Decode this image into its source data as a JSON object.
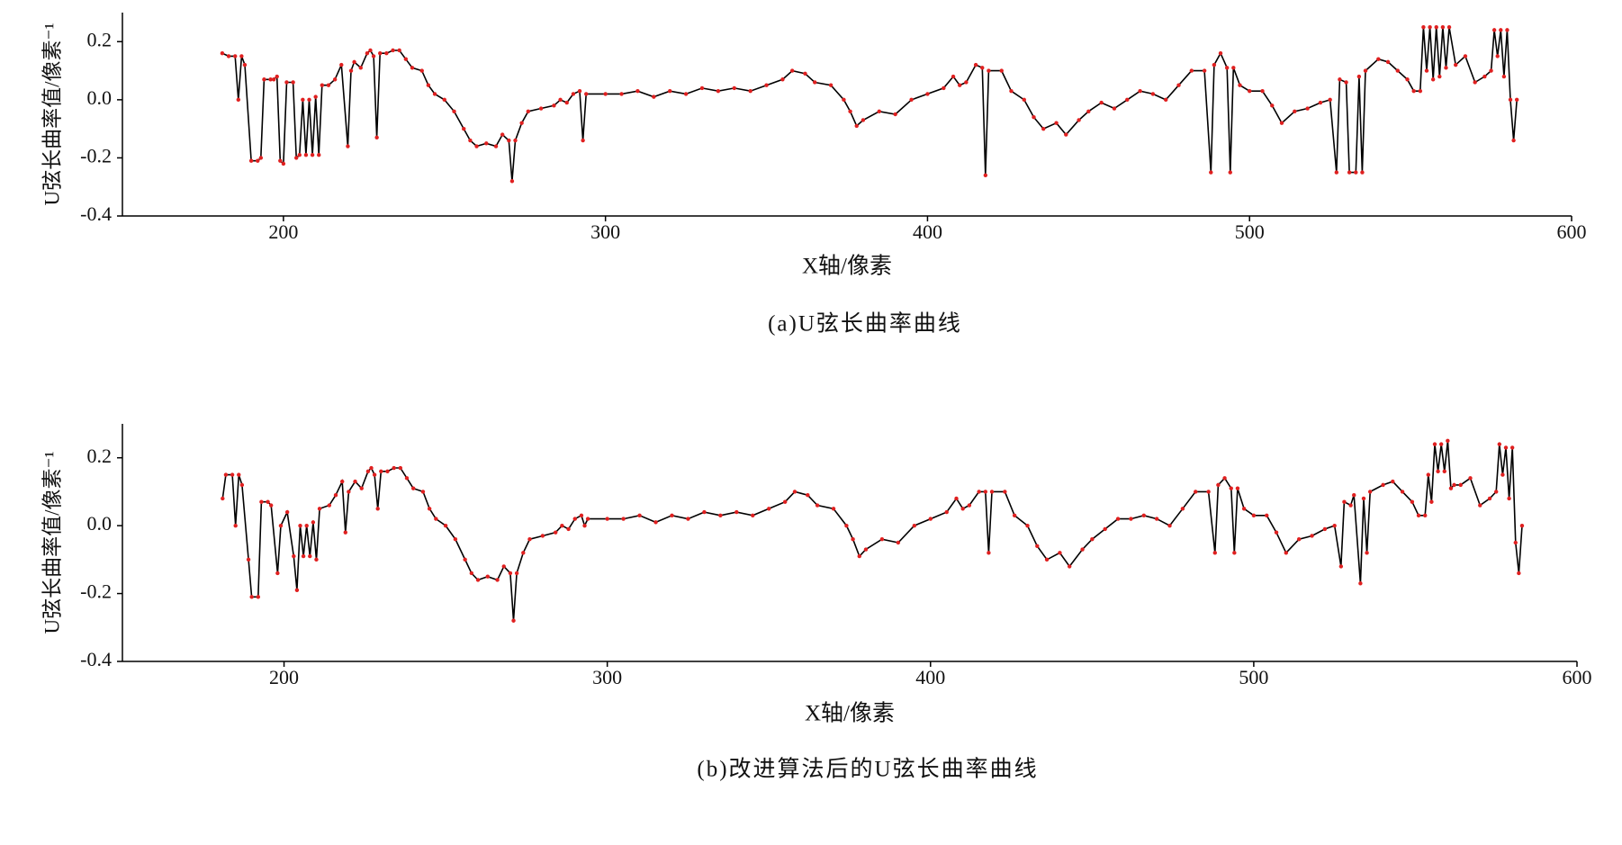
{
  "chart_data": [
    {
      "type": "line",
      "caption": "(a)U弦长曲率曲线",
      "xlabel": "X轴/像素",
      "ylabel": "U弦长曲率值/像素⁻¹",
      "xlim": [
        150,
        600
      ],
      "xticks": [
        200,
        300,
        400,
        500,
        600
      ],
      "ylim": [
        -0.4,
        0.3
      ],
      "yticks": [
        {
          "value": 0.2,
          "label": "0.2"
        },
        {
          "value": 0,
          "label": "0.0"
        },
        {
          "value": -0.2,
          "label": "-0.2"
        },
        {
          "value": -0.4,
          "label": "-0.4"
        }
      ],
      "series": [
        {
          "line_color": "#000000",
          "marker_color": "#e02020",
          "x": [
            181,
            183,
            185,
            186,
            187,
            188,
            190,
            192,
            193,
            194,
            196,
            197,
            198,
            199,
            200,
            201,
            203,
            204,
            205,
            206,
            207,
            208,
            209,
            210,
            211,
            212,
            214,
            216,
            218,
            220,
            221,
            222,
            224,
            226,
            227,
            228,
            229,
            230,
            232,
            234,
            236,
            238,
            240,
            243,
            245,
            247,
            250,
            253,
            256,
            258,
            260,
            263,
            266,
            268,
            270,
            271,
            272,
            274,
            276,
            280,
            284,
            286,
            288,
            290,
            292,
            293,
            294,
            300,
            305,
            310,
            315,
            320,
            325,
            330,
            335,
            340,
            345,
            350,
            355,
            358,
            362,
            365,
            370,
            374,
            376,
            378,
            380,
            385,
            390,
            395,
            400,
            405,
            408,
            410,
            412,
            415,
            417,
            418,
            419,
            423,
            426,
            430,
            433,
            436,
            440,
            443,
            447,
            450,
            454,
            458,
            462,
            466,
            470,
            474,
            478,
            482,
            486,
            488,
            489,
            491,
            493,
            494,
            495,
            497,
            500,
            504,
            507,
            510,
            514,
            518,
            522,
            525,
            527,
            528,
            530,
            531,
            533,
            534,
            535,
            536,
            540,
            543,
            546,
            549,
            551,
            553,
            554,
            555,
            556,
            557,
            558,
            559,
            560,
            561,
            562,
            564,
            567,
            570,
            573,
            575,
            576,
            577,
            578,
            579,
            580,
            581,
            582,
            583
          ],
          "values": [
            0.16,
            0.15,
            0.15,
            0.0,
            0.15,
            0.12,
            -0.21,
            -0.21,
            -0.2,
            0.07,
            0.07,
            0.07,
            0.08,
            -0.21,
            -0.22,
            0.06,
            0.06,
            -0.2,
            -0.19,
            0.0,
            -0.19,
            0.0,
            -0.19,
            0.01,
            -0.19,
            0.05,
            0.05,
            0.07,
            0.12,
            -0.16,
            0.1,
            0.13,
            0.11,
            0.16,
            0.17,
            0.15,
            -0.13,
            0.16,
            0.16,
            0.17,
            0.17,
            0.14,
            0.11,
            0.1,
            0.05,
            0.02,
            0.0,
            -0.04,
            -0.1,
            -0.14,
            -0.16,
            -0.15,
            -0.16,
            -0.12,
            -0.14,
            -0.28,
            -0.14,
            -0.08,
            -0.04,
            -0.03,
            -0.02,
            0.0,
            -0.01,
            0.02,
            0.03,
            -0.14,
            0.02,
            0.02,
            0.02,
            0.03,
            0.01,
            0.03,
            0.02,
            0.04,
            0.03,
            0.04,
            0.03,
            0.05,
            0.07,
            0.1,
            0.09,
            0.06,
            0.05,
            0.0,
            -0.04,
            -0.09,
            -0.07,
            -0.04,
            -0.05,
            0.0,
            0.02,
            0.04,
            0.08,
            0.05,
            0.06,
            0.12,
            0.11,
            -0.26,
            0.1,
            0.1,
            0.03,
            0.0,
            -0.06,
            -0.1,
            -0.08,
            -0.12,
            -0.07,
            -0.04,
            -0.01,
            -0.03,
            0.0,
            0.03,
            0.02,
            0.0,
            0.05,
            0.1,
            0.1,
            -0.25,
            0.12,
            0.16,
            0.11,
            -0.25,
            0.11,
            0.05,
            0.03,
            0.03,
            -0.02,
            -0.08,
            -0.04,
            -0.03,
            -0.01,
            0.0,
            -0.25,
            0.07,
            0.06,
            -0.25,
            -0.25,
            0.08,
            -0.25,
            0.1,
            0.14,
            0.13,
            0.1,
            0.07,
            0.03,
            0.03,
            0.25,
            0.1,
            0.25,
            0.07,
            0.25,
            0.08,
            0.25,
            0.11,
            0.25,
            0.12,
            0.15,
            0.06,
            0.08,
            0.1,
            0.24,
            0.15,
            0.24,
            0.08,
            0.24,
            0.0,
            -0.14,
            0.0
          ]
        }
      ]
    },
    {
      "type": "line",
      "caption": "(b)改进算法后的U弦长曲率曲线",
      "xlabel": "X轴/像素",
      "ylabel": "U弦长曲率值/像素⁻¹",
      "xlim": [
        150,
        600
      ],
      "xticks": [
        200,
        300,
        400,
        500,
        600
      ],
      "ylim": [
        -0.4,
        0.3
      ],
      "yticks": [
        {
          "value": 0.2,
          "label": "0.2"
        },
        {
          "value": 0,
          "label": "0.0"
        },
        {
          "value": -0.2,
          "label": "-0.2"
        },
        {
          "value": -0.4,
          "label": "-0.4"
        }
      ],
      "series": [
        {
          "line_color": "#000000",
          "marker_color": "#e02020",
          "x": [
            181,
            182,
            184,
            185,
            186,
            187,
            189,
            190,
            192,
            193,
            195,
            196,
            198,
            199,
            201,
            203,
            204,
            205,
            206,
            207,
            208,
            209,
            210,
            211,
            214,
            216,
            218,
            219,
            220,
            222,
            224,
            226,
            227,
            228,
            229,
            230,
            232,
            234,
            236,
            238,
            240,
            243,
            245,
            247,
            250,
            253,
            256,
            258,
            260,
            263,
            266,
            268,
            270,
            271,
            272,
            274,
            276,
            280,
            284,
            286,
            288,
            290,
            292,
            293,
            294,
            300,
            305,
            310,
            315,
            320,
            325,
            330,
            335,
            340,
            345,
            350,
            355,
            358,
            362,
            365,
            370,
            374,
            376,
            378,
            380,
            385,
            390,
            395,
            400,
            405,
            408,
            410,
            412,
            415,
            417,
            418,
            419,
            423,
            426,
            430,
            433,
            436,
            440,
            443,
            447,
            450,
            454,
            458,
            462,
            466,
            470,
            474,
            478,
            482,
            486,
            488,
            489,
            491,
            493,
            494,
            495,
            497,
            500,
            504,
            507,
            510,
            514,
            518,
            522,
            525,
            527,
            528,
            530,
            531,
            533,
            534,
            535,
            536,
            540,
            543,
            546,
            549,
            551,
            553,
            554,
            555,
            556,
            557,
            558,
            559,
            560,
            561,
            562,
            564,
            567,
            570,
            573,
            575,
            576,
            577,
            578,
            579,
            580,
            581,
            582,
            583
          ],
          "values": [
            0.08,
            0.15,
            0.15,
            0.0,
            0.15,
            0.12,
            -0.1,
            -0.21,
            -0.21,
            0.07,
            0.07,
            0.06,
            -0.14,
            0.0,
            0.04,
            -0.09,
            -0.19,
            0.0,
            -0.09,
            0.0,
            -0.09,
            0.01,
            -0.1,
            0.05,
            0.06,
            0.09,
            0.13,
            -0.02,
            0.1,
            0.13,
            0.11,
            0.16,
            0.17,
            0.15,
            0.05,
            0.16,
            0.16,
            0.17,
            0.17,
            0.14,
            0.11,
            0.1,
            0.05,
            0.02,
            0.0,
            -0.04,
            -0.1,
            -0.14,
            -0.16,
            -0.15,
            -0.16,
            -0.12,
            -0.14,
            -0.28,
            -0.14,
            -0.08,
            -0.04,
            -0.03,
            -0.02,
            0.0,
            -0.01,
            0.02,
            0.03,
            0.0,
            0.02,
            0.02,
            0.02,
            0.03,
            0.01,
            0.03,
            0.02,
            0.04,
            0.03,
            0.04,
            0.03,
            0.05,
            0.07,
            0.1,
            0.09,
            0.06,
            0.05,
            0.0,
            -0.04,
            -0.09,
            -0.07,
            -0.04,
            -0.05,
            0.0,
            0.02,
            0.04,
            0.08,
            0.05,
            0.06,
            0.1,
            0.1,
            -0.08,
            0.1,
            0.1,
            0.03,
            0.0,
            -0.06,
            -0.1,
            -0.08,
            -0.12,
            -0.07,
            -0.04,
            -0.01,
            0.02,
            0.02,
            0.03,
            0.02,
            0.0,
            0.05,
            0.1,
            0.1,
            -0.08,
            0.12,
            0.14,
            0.11,
            -0.08,
            0.11,
            0.05,
            0.03,
            0.03,
            -0.02,
            -0.08,
            -0.04,
            -0.03,
            -0.01,
            0.0,
            -0.12,
            0.07,
            0.06,
            0.09,
            -0.17,
            0.08,
            -0.08,
            0.1,
            0.12,
            0.13,
            0.1,
            0.07,
            0.03,
            0.03,
            0.15,
            0.07,
            0.24,
            0.16,
            0.24,
            0.16,
            0.25,
            0.11,
            0.12,
            0.12,
            0.14,
            0.06,
            0.08,
            0.1,
            0.24,
            0.15,
            0.23,
            0.08,
            0.23,
            -0.05,
            -0.14,
            0.0
          ]
        }
      ]
    }
  ]
}
